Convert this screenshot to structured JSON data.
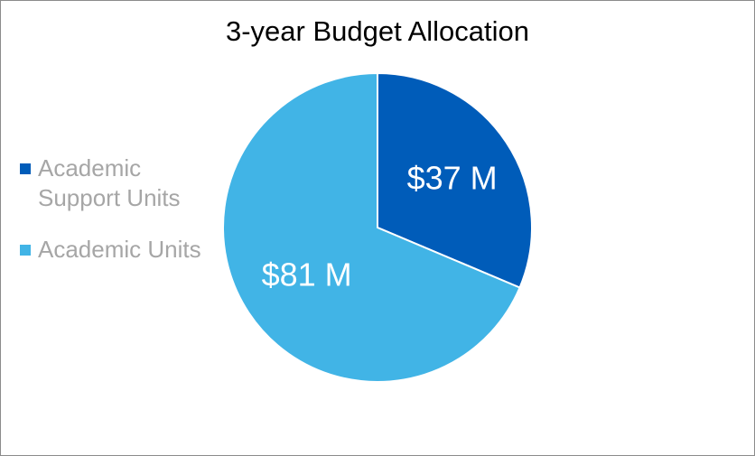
{
  "chart_data": {
    "type": "pie",
    "title": "3-year Budget Allocation",
    "slices": [
      {
        "name": "Academic Support Units",
        "value": 37,
        "label": "$37 M",
        "color": "#005cb9"
      },
      {
        "name": "Academic Units",
        "value": 81,
        "label": "$81 M",
        "color": "#41b4e6"
      }
    ],
    "legend_position": "left",
    "start_angle_deg": 0,
    "direction": "clockwise"
  }
}
